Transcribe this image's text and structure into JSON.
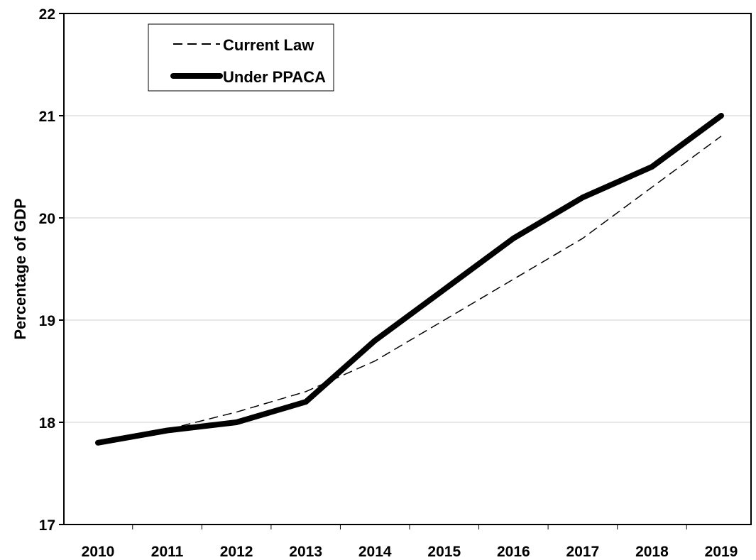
{
  "chart_data": {
    "type": "line",
    "title": "",
    "xlabel": "",
    "ylabel": "Percentage of GDP",
    "categories": [
      "2010",
      "2011",
      "2012",
      "2013",
      "2014",
      "2015",
      "2016",
      "2017",
      "2018",
      "2019"
    ],
    "ylim": [
      17,
      22
    ],
    "yticks": [
      "17",
      "18",
      "19",
      "20",
      "21",
      "22"
    ],
    "grid": true,
    "legend_position": "top-left",
    "series": [
      {
        "name": "Current Law",
        "style": "dashed-thin",
        "color": "#000000",
        "values": [
          17.8,
          17.93,
          18.1,
          18.3,
          18.6,
          19.0,
          19.4,
          19.8,
          20.3,
          20.8
        ]
      },
      {
        "name": "Under PPACA",
        "style": "solid-thick",
        "color": "#000000",
        "values": [
          17.8,
          17.92,
          18.0,
          18.2,
          18.8,
          19.3,
          19.8,
          20.2,
          20.5,
          21.0
        ]
      }
    ]
  }
}
